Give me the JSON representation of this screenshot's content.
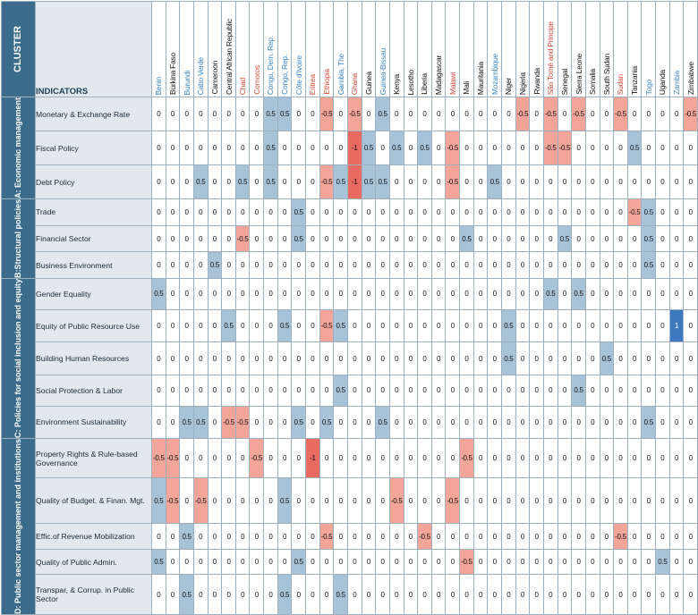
{
  "header": {
    "cluster_label": "CLUSTER",
    "indicators_label": "INDICATORS"
  },
  "colors": {
    "cluster_bg": "#3c6c8c",
    "indicator_bg": "#e1e9ee",
    "neg_half": "#f4a59a",
    "neg_one": "#e86a60",
    "pos_half": "#a7c3d7",
    "pos_one": "#3d79bf",
    "country_highlight_red": "#d9483b",
    "country_highlight_blue": "#3a86c8"
  },
  "chart_data": {
    "type": "heatmap",
    "x": [
      {
        "name": "Benin",
        "color": "blue"
      },
      {
        "name": "Burkina Faso",
        "color": "black"
      },
      {
        "name": "Burundi",
        "color": "blue"
      },
      {
        "name": "Cabo Verde",
        "color": "blue"
      },
      {
        "name": "Cameroon",
        "color": "black"
      },
      {
        "name": "Central African Republic",
        "color": "black"
      },
      {
        "name": "Chad",
        "color": "red"
      },
      {
        "name": "Comoros",
        "color": "red"
      },
      {
        "name": "Congo, Dem. Rep.",
        "color": "blue"
      },
      {
        "name": "Congo, Rep.",
        "color": "blue"
      },
      {
        "name": "Côte d'Ivoire",
        "color": "blue"
      },
      {
        "name": "Eritrea",
        "color": "red"
      },
      {
        "name": "Ethiopia",
        "color": "red"
      },
      {
        "name": "Gambia, The",
        "color": "blue"
      },
      {
        "name": "Ghana",
        "color": "red"
      },
      {
        "name": "Guinea",
        "color": "black"
      },
      {
        "name": "Guinea-Bissau",
        "color": "blue"
      },
      {
        "name": "Kenya",
        "color": "black"
      },
      {
        "name": "Lesotho",
        "color": "black"
      },
      {
        "name": "Liberia",
        "color": "black"
      },
      {
        "name": "Madagascar",
        "color": "black"
      },
      {
        "name": "Malawi",
        "color": "red"
      },
      {
        "name": "Mali",
        "color": "black"
      },
      {
        "name": "Mauritania",
        "color": "black"
      },
      {
        "name": "Mozambique",
        "color": "blue"
      },
      {
        "name": "Niger",
        "color": "black"
      },
      {
        "name": "Nigeria",
        "color": "black"
      },
      {
        "name": "Rwanda",
        "color": "black"
      },
      {
        "name": "São Tomé and Principe",
        "color": "red"
      },
      {
        "name": "Senegal",
        "color": "black"
      },
      {
        "name": "Sierra Leone",
        "color": "black"
      },
      {
        "name": "Somalia",
        "color": "black"
      },
      {
        "name": "South Sudan",
        "color": "black"
      },
      {
        "name": "Sudan",
        "color": "red"
      },
      {
        "name": "Tanzania",
        "color": "black"
      },
      {
        "name": "Togo",
        "color": "blue"
      },
      {
        "name": "Uganda",
        "color": "black"
      },
      {
        "name": "Zambia",
        "color": "blue"
      },
      {
        "name": "Zimbabwe",
        "color": "black"
      }
    ],
    "clusters": [
      {
        "label": "A: Economic management",
        "rows": [
          {
            "indicator": "Monetary & Exchange Rate",
            "values": [
              "0",
              "0",
              "0",
              "0",
              "0",
              "0",
              "0",
              "0",
              "0.5",
              "0.5",
              "0",
              "0",
              "-0.5",
              "0",
              "-0.5",
              "0",
              "0.5",
              "0",
              "0",
              "0",
              "0",
              "0",
              "0",
              "0",
              "0",
              "0",
              "-0.5",
              "0",
              "-0.5",
              "0",
              "-0.5",
              "0",
              "0",
              "-0.5",
              "0",
              "0",
              "0",
              "0",
              "-0.5"
            ]
          },
          {
            "indicator": "Fiscal Policy",
            "values": [
              "0",
              "0",
              "0",
              "0",
              "0",
              "0",
              "0",
              "0",
              "0.5",
              "0",
              "0",
              "0",
              "0",
              "0",
              "-1",
              "0.5",
              "0",
              "0.5",
              "0",
              "0.5",
              "0",
              "-0.5",
              "0",
              "0",
              "0",
              "0",
              "0",
              "0",
              "-0.5",
              "-0.5",
              "0",
              "0",
              "0",
              "0",
              "0.5",
              "0",
              "0",
              "0",
              "0"
            ]
          },
          {
            "indicator": "Debt Policy",
            "values": [
              "0",
              "0",
              "0",
              "0.5",
              "0",
              "0",
              "0.5",
              "0",
              "0.5",
              "0",
              "0",
              "0",
              "-0.5",
              "0.5",
              "-1",
              "0.5",
              "0.5",
              "0",
              "0",
              "0",
              "0",
              "-0.5",
              "0",
              "0",
              "0.5",
              "0",
              "0",
              "0",
              "0",
              "0",
              "0",
              "0",
              "0",
              "0",
              "0",
              "0",
              "0",
              "0",
              "0"
            ]
          }
        ]
      },
      {
        "label": "B:Structural policies",
        "rows": [
          {
            "indicator": "Trade",
            "values": [
              "0",
              "0",
              "0",
              "0",
              "0",
              "0",
              "0",
              "0",
              "0",
              "0",
              "0.5",
              "0",
              "0",
              "0",
              "0",
              "0",
              "0",
              "0",
              "0",
              "0",
              "0",
              "0",
              "0",
              "0",
              "0",
              "0",
              "0",
              "0",
              "0",
              "0",
              "0",
              "0",
              "0",
              "0",
              "-0.5",
              "0.5",
              "0",
              "0",
              "0"
            ]
          },
          {
            "indicator": "Financial Sector",
            "values": [
              "0",
              "0",
              "0",
              "0",
              "0",
              "0",
              "-0.5",
              "0",
              "0",
              "0",
              "0.5",
              "0",
              "0",
              "0",
              "0",
              "0",
              "0",
              "0",
              "0",
              "0",
              "0",
              "0",
              "0.5",
              "0",
              "0",
              "0",
              "0",
              "0",
              "0",
              "0.5",
              "0",
              "0",
              "0",
              "0",
              "0",
              "0.5",
              "0",
              "0",
              "0"
            ]
          },
          {
            "indicator": "Business Environment",
            "values": [
              "0",
              "0",
              "0",
              "0",
              "0.5",
              "0",
              "0",
              "0",
              "0",
              "0",
              "0",
              "0",
              "0",
              "0",
              "0",
              "0",
              "0",
              "0",
              "0",
              "0",
              "0",
              "0",
              "0",
              "0",
              "0",
              "0",
              "0",
              "0",
              "0",
              "0",
              "0",
              "0",
              "0",
              "0",
              "0",
              "0.5",
              "0",
              "0",
              "0"
            ]
          }
        ]
      },
      {
        "label": "C: Policies for social inclusion and equity",
        "rows": [
          {
            "indicator": "Gender Equality",
            "values": [
              "0.5",
              "0",
              "0",
              "0",
              "0",
              "0",
              "0",
              "0",
              "0",
              "0",
              "0",
              "0",
              "0",
              "0",
              "0",
              "0",
              "0",
              "0",
              "0",
              "0",
              "0",
              "0",
              "0",
              "0",
              "0",
              "0",
              "0",
              "0",
              "0.5",
              "0",
              "0.5",
              "0",
              "0",
              "0",
              "0",
              "0",
              "0",
              "0",
              "0"
            ]
          },
          {
            "indicator": "Equity of Public Resource Use",
            "values": [
              "0",
              "0",
              "0",
              "0",
              "0",
              "0.5",
              "0",
              "0",
              "0",
              "0.5",
              "0",
              "0",
              "-0.5",
              "0.5",
              "0",
              "0",
              "0",
              "0",
              "0",
              "0",
              "0",
              "0",
              "0",
              "0",
              "0",
              "0.5",
              "0",
              "0",
              "0",
              "0",
              "0",
              "0",
              "0",
              "0",
              "0",
              "0",
              "0",
              "1",
              "0"
            ]
          },
          {
            "indicator": "Building Human Resources",
            "values": [
              "0",
              "0",
              "0",
              "0",
              "0",
              "0",
              "0",
              "0",
              "0",
              "0",
              "0",
              "0",
              "0",
              "0",
              "0",
              "0",
              "0",
              "0",
              "0",
              "0",
              "0",
              "0",
              "0",
              "0",
              "0",
              "0.5",
              "0",
              "0",
              "0",
              "0",
              "0",
              "0",
              "0.5",
              "0",
              "0",
              "0",
              "0",
              "0",
              "0"
            ]
          },
          {
            "indicator": "Social Protection & Labor",
            "values": [
              "0",
              "0",
              "0",
              "0",
              "0",
              "0",
              "0",
              "0",
              "0",
              "0",
              "0",
              "0",
              "0",
              "0.5",
              "0",
              "0",
              "0",
              "0",
              "0",
              "0",
              "0",
              "0",
              "0",
              "0",
              "0",
              "0",
              "0",
              "0",
              "0",
              "0",
              "0.5",
              "0",
              "0",
              "0",
              "0",
              "0",
              "0",
              "0",
              "0"
            ]
          },
          {
            "indicator": "Environment Sustainability",
            "values": [
              "0",
              "0",
              "0.5",
              "0.5",
              "0",
              "-0.5",
              "-0.5",
              "0",
              "0",
              "0",
              "0.5",
              "0",
              "0.5",
              "0",
              "0",
              "0",
              "0.5",
              "0",
              "0",
              "0",
              "0",
              "0",
              "0",
              "0",
              "0",
              "0",
              "0",
              "0",
              "0",
              "0",
              "0",
              "0",
              "0",
              "0",
              "0",
              "0.5",
              "0",
              "0",
              "0"
            ]
          }
        ]
      },
      {
        "label": "D: Public sector management and institutions",
        "rows": [
          {
            "indicator": "Property Rights & Rule-based Governance",
            "values": [
              "-0.5",
              "-0.5",
              "0",
              "0",
              "0",
              "0",
              "0",
              "-0.5",
              "0",
              "0",
              "0",
              "-1",
              "0",
              "0",
              "0",
              "0",
              "0",
              "0",
              "0",
              "0",
              "0",
              "0",
              "-0.5",
              "0",
              "0",
              "0",
              "0",
              "0",
              "0",
              "0",
              "0",
              "0",
              "0",
              "0",
              "0",
              "0",
              "0",
              "0",
              "0"
            ]
          },
          {
            "indicator": "Quality of Budget. & Finan. Mgt.",
            "values": [
              "0.5",
              "-0.5",
              "0",
              "-0.5",
              "0",
              "0",
              "0",
              "0",
              "0",
              "0.5",
              "0",
              "0",
              "0",
              "0",
              "0",
              "0",
              "0",
              "-0.5",
              "0",
              "0",
              "0",
              "-0.5",
              "0",
              "0",
              "0",
              "0",
              "0",
              "0",
              "0",
              "0",
              "0",
              "0",
              "0",
              "0",
              "0",
              "0",
              "0",
              "0",
              "0"
            ]
          },
          {
            "indicator": "Effic.of Revenue Mobilization",
            "values": [
              "0",
              "0",
              "0.5",
              "0",
              "0",
              "0",
              "0",
              "0",
              "0",
              "0",
              "0",
              "0",
              "-0.5",
              "0",
              "0",
              "0",
              "0",
              "0",
              "0",
              "-0.5",
              "0",
              "0",
              "0",
              "0",
              "0",
              "0",
              "0",
              "0",
              "0",
              "0",
              "0",
              "0",
              "0",
              "-0.5",
              "0",
              "0",
              "0",
              "0",
              "0"
            ]
          },
          {
            "indicator": "Quality of Public Admin.",
            "values": [
              "0.5",
              "0",
              "0",
              "0",
              "0",
              "0",
              "0",
              "0",
              "0",
              "0",
              "0.5",
              "0",
              "0",
              "0",
              "0",
              "0",
              "0",
              "0",
              "0",
              "0",
              "0",
              "0",
              "-0.5",
              "0",
              "0",
              "0",
              "0",
              "0",
              "0",
              "0",
              "0",
              "0",
              "0",
              "0",
              "0",
              "0",
              "0.5",
              "0",
              "0"
            ]
          },
          {
            "indicator": "Transpar, & Corrup. in Public Sector",
            "values": [
              "0",
              "0",
              "0.5",
              "0",
              "0",
              "0",
              "0",
              "0",
              "0",
              "0.5",
              "0",
              "0",
              "0",
              "0.5",
              "0",
              "0",
              "0",
              "0",
              "0",
              "0",
              "0",
              "0",
              "0",
              "0",
              "0",
              "0",
              "0",
              "0",
              "0",
              "0",
              "0",
              "0",
              "0",
              "0",
              "0",
              "0",
              "0",
              "0",
              "0"
            ]
          }
        ]
      }
    ]
  }
}
